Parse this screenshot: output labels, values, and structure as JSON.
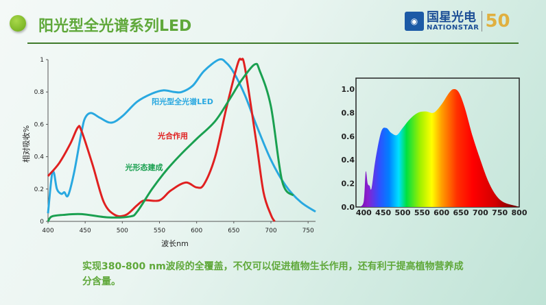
{
  "header": {
    "title": "阳光型全光谱系列LED",
    "logo_cn": "国星光电",
    "logo_en": "NATIONSTAR",
    "logo_badge": "50"
  },
  "description": "实现380-800 nm波段的全覆盖，不仅可以促进植物生长作用，还有利于提高植物营养成分含量。",
  "chart_data": [
    {
      "type": "line",
      "xlabel": "波长nm",
      "ylabel": "相对吸收%",
      "xlim": [
        400,
        760
      ],
      "ylim": [
        0,
        1
      ],
      "xticks": [
        400,
        450,
        500,
        550,
        600,
        650,
        700,
        750
      ],
      "yticks": [
        "0",
        "0.2",
        "0.4",
        "0.6",
        "0.8",
        "1"
      ],
      "series": [
        {
          "name": "阳光型全光谱LED",
          "color": "#29a8e0",
          "x": [
            400,
            405,
            408,
            412,
            418,
            422,
            427,
            435,
            445,
            450,
            458,
            470,
            485,
            500,
            520,
            540,
            555,
            570,
            580,
            595,
            610,
            630,
            640,
            650,
            665,
            680,
            700,
            720,
            740,
            760
          ],
          "y": [
            0.05,
            0.28,
            0.3,
            0.2,
            0.17,
            0.18,
            0.16,
            0.3,
            0.55,
            0.64,
            0.67,
            0.64,
            0.61,
            0.65,
            0.74,
            0.79,
            0.81,
            0.8,
            0.8,
            0.84,
            0.93,
            1.0,
            0.98,
            0.92,
            0.78,
            0.6,
            0.38,
            0.22,
            0.12,
            0.06
          ]
        },
        {
          "name": "光合作用",
          "color": "#e02020",
          "x": [
            400,
            415,
            430,
            440,
            445,
            460,
            475,
            490,
            505,
            520,
            530,
            550,
            565,
            585,
            600,
            610,
            625,
            640,
            655,
            660,
            665,
            680,
            690,
            700,
            705
          ],
          "y": [
            0.28,
            0.36,
            0.48,
            0.58,
            0.56,
            0.35,
            0.12,
            0.04,
            0.04,
            0.1,
            0.13,
            0.13,
            0.19,
            0.24,
            0.21,
            0.23,
            0.4,
            0.7,
            0.97,
            1.0,
            0.95,
            0.5,
            0.18,
            0.04,
            0
          ]
        },
        {
          "name": "光形态建成",
          "color": "#1aa050",
          "x": [
            400,
            405,
            420,
            445,
            480,
            510,
            520,
            540,
            560,
            580,
            600,
            625,
            645,
            660,
            678,
            685,
            700,
            715,
            730
          ],
          "y": [
            0,
            0.03,
            0.04,
            0.045,
            0.025,
            0.03,
            0.06,
            0.2,
            0.32,
            0.42,
            0.51,
            0.62,
            0.76,
            0.87,
            0.97,
            0.93,
            0.71,
            0.25,
            0.16
          ]
        }
      ]
    },
    {
      "type": "area",
      "xlim": [
        380,
        800
      ],
      "ylim": [
        0,
        1.1
      ],
      "xticks": [
        400,
        450,
        500,
        550,
        600,
        650,
        700,
        750,
        800
      ],
      "yticks": [
        "0.0",
        "0.2",
        "0.4",
        "0.6",
        "0.8",
        "1.0"
      ],
      "x": [
        390,
        400,
        405,
        410,
        415,
        420,
        430,
        445,
        458,
        470,
        485,
        500,
        520,
        540,
        560,
        580,
        600,
        620,
        632,
        645,
        660,
        680,
        700,
        720,
        740,
        760,
        790,
        800
      ],
      "y": [
        0,
        0.05,
        0.3,
        0.2,
        0.18,
        0.16,
        0.4,
        0.64,
        0.67,
        0.63,
        0.61,
        0.67,
        0.75,
        0.8,
        0.81,
        0.8,
        0.87,
        0.97,
        1.0,
        0.97,
        0.84,
        0.6,
        0.4,
        0.22,
        0.1,
        0.04,
        0.01,
        0
      ]
    }
  ]
}
